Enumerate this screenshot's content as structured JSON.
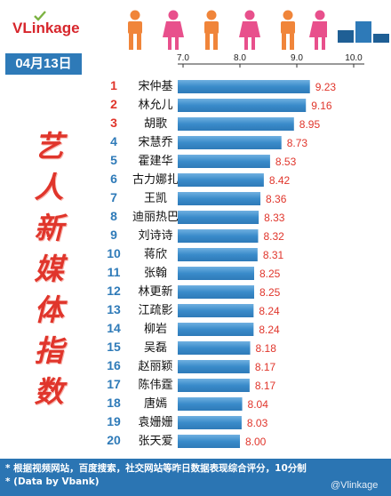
{
  "header": {
    "logo_text": "VLinkage",
    "date": "04月13日",
    "vertical_title": [
      "艺",
      "人",
      "新",
      "媒",
      "体",
      "指",
      "数"
    ]
  },
  "colors": {
    "bar": "#3a8bca",
    "bar_light": "#6fb0e0",
    "rank_red": "#e0352b",
    "rank_blue": "#2e7ab8",
    "value": "#e0352b",
    "footer_bg": "#2b75b3"
  },
  "chart_data": {
    "type": "bar",
    "orientation": "horizontal",
    "axis_ticks": [
      "7.0",
      "8.0",
      "9.0",
      "10.0"
    ],
    "xlim": [
      6.5,
      10.0
    ],
    "grid": false,
    "categories": [
      "宋仲基",
      "林允儿",
      "胡歌",
      "宋慧乔",
      "霍建华",
      "古力娜扎",
      "王凯",
      "迪丽热巴",
      "刘诗诗",
      "蒋欣",
      "张翰",
      "林更新",
      "江疏影",
      "柳岩",
      "吴磊",
      "赵丽颖",
      "陈伟霆",
      "唐嫣",
      "袁姗姗",
      "张天爱"
    ],
    "ranks": [
      "1",
      "2",
      "3",
      "4",
      "5",
      "6",
      "7",
      "8",
      "9",
      "10",
      "11",
      "12",
      "13",
      "14",
      "15",
      "16",
      "17",
      "18",
      "19",
      "20"
    ],
    "values": [
      9.23,
      9.16,
      8.95,
      8.73,
      8.53,
      8.42,
      8.36,
      8.33,
      8.32,
      8.31,
      8.25,
      8.25,
      8.24,
      8.24,
      8.18,
      8.17,
      8.17,
      8.04,
      8.03,
      8.0
    ],
    "value_labels": [
      "9.23",
      "9.16",
      "8.95",
      "8.73",
      "8.53",
      "8.42",
      "8.36",
      "8.33",
      "8.32",
      "8.31",
      "8.25",
      "8.25",
      "8.24",
      "8.24",
      "8.18",
      "8.17",
      "8.17",
      "8.04",
      "8.03",
      "8.00"
    ]
  },
  "footer": {
    "note1": "* 根据视频网站，百度搜索，社交网站等昨日数据表现综合评分，10分制",
    "note2": "* (Data by Vbank)",
    "watermark": "@Vlinkage"
  }
}
